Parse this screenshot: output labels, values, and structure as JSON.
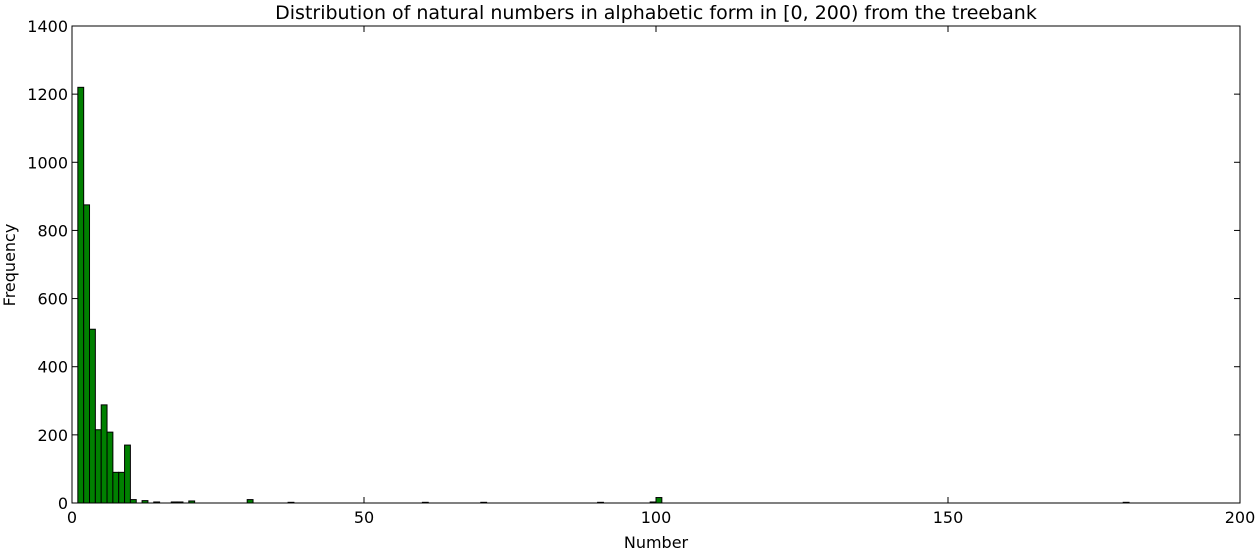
{
  "chart_data": {
    "type": "bar",
    "title": "Distribution of natural numbers in alphabetic form in [0, 200) from the treebank",
    "xlabel": "Number",
    "ylabel": "Frequency",
    "xlim": [
      0,
      200
    ],
    "ylim": [
      0,
      1400
    ],
    "xticks": [
      0,
      50,
      100,
      150,
      200
    ],
    "yticks": [
      0,
      200,
      400,
      600,
      800,
      1000,
      1200,
      1400
    ],
    "grid": false,
    "legend": "none",
    "bar_color": "#008000",
    "bin_width": 1,
    "bins": [
      {
        "x": 1,
        "count": 1220
      },
      {
        "x": 2,
        "count": 875
      },
      {
        "x": 3,
        "count": 510
      },
      {
        "x": 4,
        "count": 215
      },
      {
        "x": 5,
        "count": 288
      },
      {
        "x": 6,
        "count": 208
      },
      {
        "x": 7,
        "count": 90
      },
      {
        "x": 8,
        "count": 90
      },
      {
        "x": 9,
        "count": 170
      },
      {
        "x": 10,
        "count": 10
      },
      {
        "x": 12,
        "count": 7
      },
      {
        "x": 14,
        "count": 3
      },
      {
        "x": 17,
        "count": 3
      },
      {
        "x": 18,
        "count": 3
      },
      {
        "x": 20,
        "count": 6
      },
      {
        "x": 30,
        "count": 10
      },
      {
        "x": 37,
        "count": 2
      },
      {
        "x": 60,
        "count": 2
      },
      {
        "x": 70,
        "count": 2
      },
      {
        "x": 90,
        "count": 2
      },
      {
        "x": 99,
        "count": 3
      },
      {
        "x": 100,
        "count": 16
      },
      {
        "x": 180,
        "count": 2
      }
    ]
  }
}
